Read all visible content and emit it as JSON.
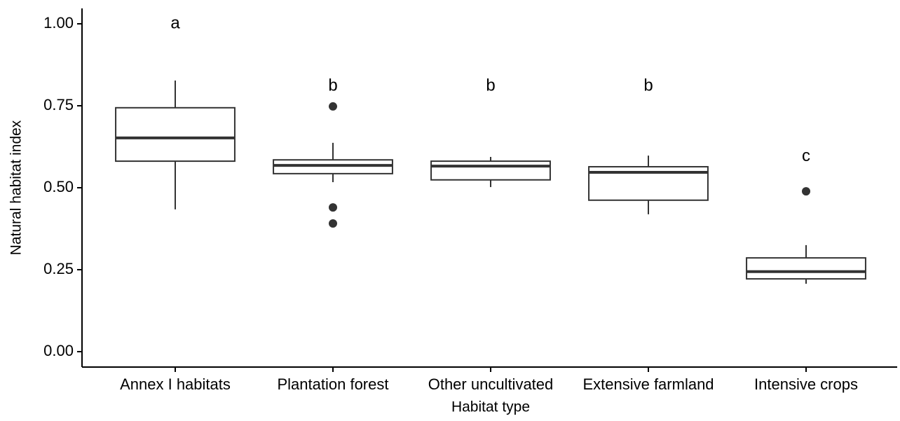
{
  "chart_data": {
    "type": "box",
    "x_label": "Habitat type",
    "y_label": "Natural habitat index",
    "categories": [
      "Annex I habitats",
      "Plantation forest",
      "Other uncultivated",
      "Extensive farmland",
      "Intensive crops"
    ],
    "boxes": [
      {
        "min": 0.434,
        "q1": 0.581,
        "median": 0.652,
        "q3": 0.744,
        "max": 0.827,
        "outliers": []
      },
      {
        "min": 0.517,
        "q1": 0.543,
        "median": 0.568,
        "q3": 0.585,
        "max": 0.637,
        "outliers": [
          0.748,
          0.44,
          0.391
        ]
      },
      {
        "min": 0.502,
        "q1": 0.524,
        "median": 0.566,
        "q3": 0.581,
        "max": 0.594,
        "outliers": []
      },
      {
        "min": 0.419,
        "q1": 0.462,
        "median": 0.547,
        "q3": 0.564,
        "max": 0.598,
        "outliers": []
      },
      {
        "min": 0.207,
        "q1": 0.222,
        "median": 0.244,
        "q3": 0.286,
        "max": 0.325,
        "outliers": [
          0.489
        ]
      }
    ],
    "annotations": [
      {
        "text": "a",
        "y": 1.0
      },
      {
        "text": "b",
        "y": 0.81
      },
      {
        "text": "b",
        "y": 0.81
      },
      {
        "text": "b",
        "y": 0.81
      },
      {
        "text": "c",
        "y": 0.595
      }
    ],
    "ylim": [
      -0.047,
      1.047
    ],
    "yticks": [
      {
        "value": 0,
        "label": "0.00"
      },
      {
        "value": 0.25,
        "label": "0.25"
      },
      {
        "value": 0.5,
        "label": "0.50"
      },
      {
        "value": 0.75,
        "label": "0.75"
      },
      {
        "value": 1,
        "label": "1.00"
      }
    ],
    "color": "#333333",
    "grid": false
  }
}
